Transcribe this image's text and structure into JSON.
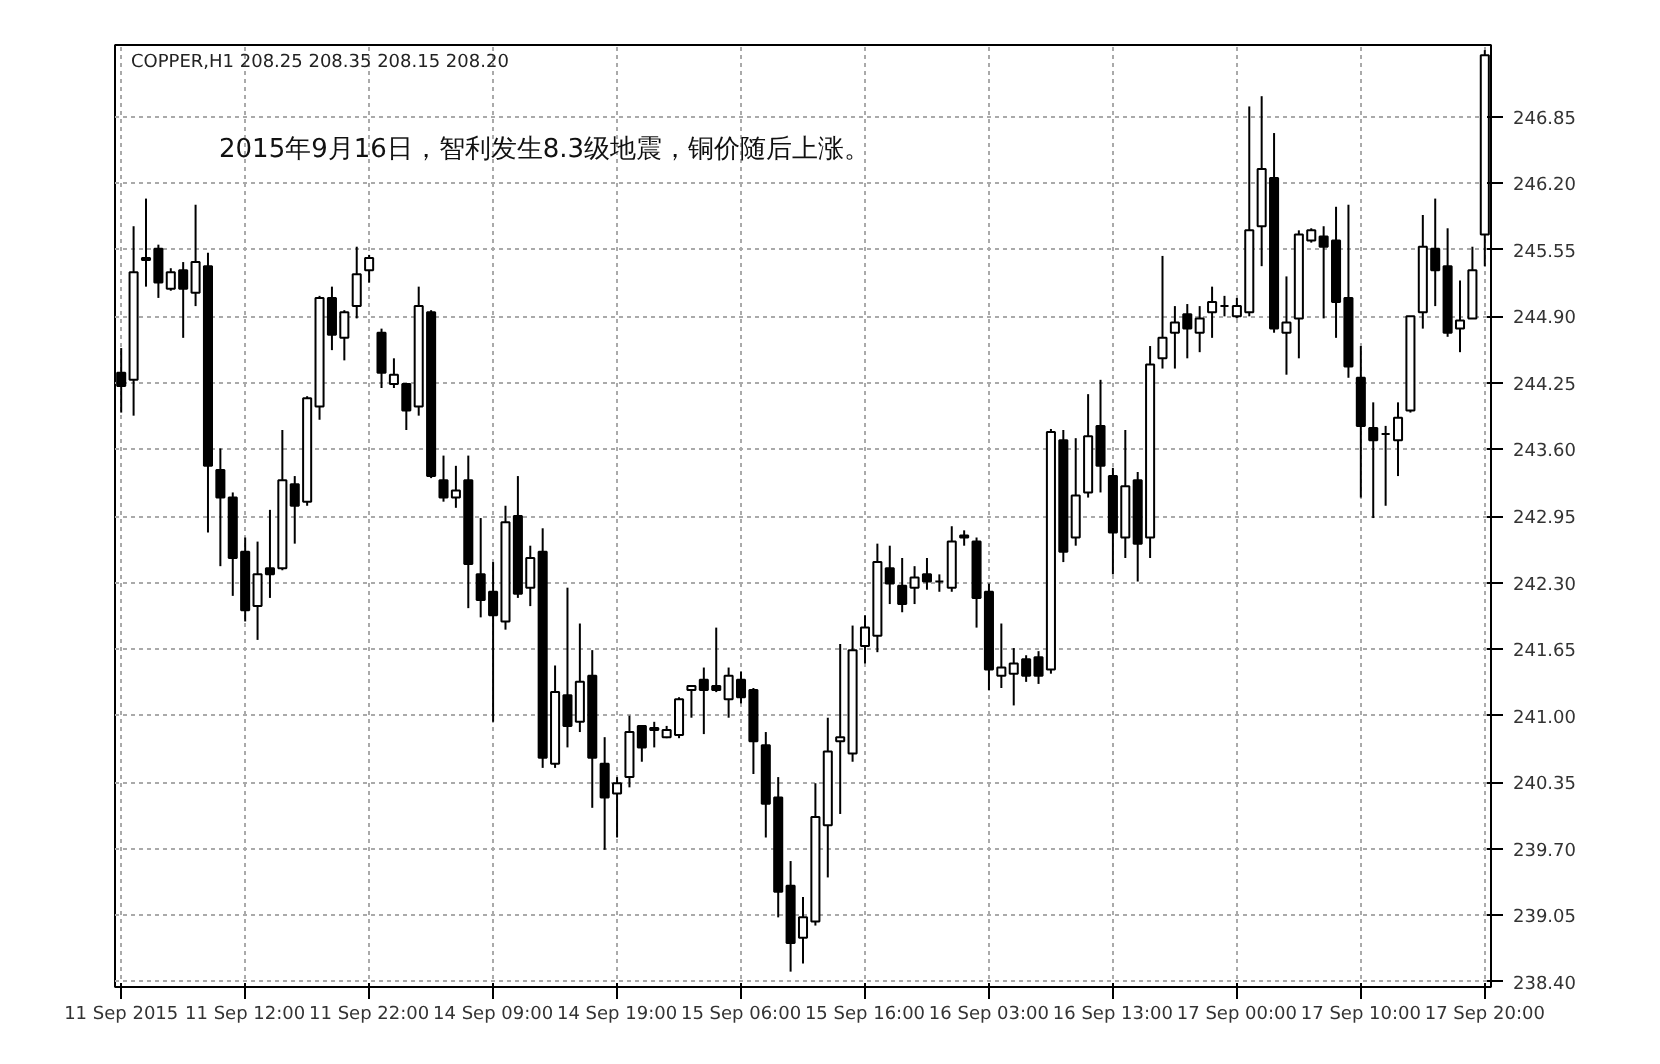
{
  "chart_data": {
    "type": "candlestick",
    "title": "COPPER,H1  208.25 208.35 208.15 208.20",
    "annotations": [
      "2015年9月16日，智利发生8.3级地震，铜价随后上涨。"
    ],
    "categories": [
      "11 Sep 2015",
      null,
      null,
      null,
      null,
      null,
      null,
      null,
      null,
      null,
      "11 Sep 12:00",
      null,
      null,
      null,
      null,
      null,
      null,
      null,
      null,
      null,
      "11 Sep 22:00",
      null,
      null,
      null,
      null,
      null,
      null,
      null,
      null,
      null,
      "14 Sep 09:00",
      null,
      null,
      null,
      null,
      null,
      null,
      null,
      null,
      null,
      "14 Sep 19:00",
      null,
      null,
      null,
      null,
      null,
      null,
      null,
      null,
      null,
      "15 Sep 06:00",
      null,
      null,
      null,
      null,
      null,
      null,
      null,
      null,
      null,
      "15 Sep 16:00",
      null,
      null,
      null,
      null,
      null,
      null,
      null,
      null,
      null,
      "16 Sep 03:00",
      null,
      null,
      null,
      null,
      null,
      null,
      null,
      null,
      null,
      "16 Sep 13:00",
      null,
      null,
      null,
      null,
      null,
      null,
      null,
      null,
      null,
      "17 Sep 00:00",
      null,
      null,
      null,
      null,
      null,
      null,
      null,
      null,
      null,
      "17 Sep 10:00",
      null,
      null,
      null,
      null,
      null,
      null,
      null,
      null,
      null,
      "17 Sep 20:00"
    ],
    "ohlc": [
      [
        244.35,
        244.59,
        243.96,
        244.22
      ],
      [
        244.28,
        245.78,
        243.93,
        245.33
      ],
      [
        245.47,
        246.05,
        245.19,
        245.45
      ],
      [
        245.56,
        245.6,
        245.08,
        245.23
      ],
      [
        245.17,
        245.37,
        245.15,
        245.33
      ],
      [
        245.35,
        245.43,
        244.69,
        245.17
      ],
      [
        245.13,
        245.99,
        245.0,
        245.43
      ],
      [
        245.39,
        245.52,
        242.79,
        243.44
      ],
      [
        243.4,
        243.61,
        242.46,
        243.13
      ],
      [
        243.13,
        243.18,
        242.17,
        242.54
      ],
      [
        242.6,
        242.74,
        241.92,
        242.03
      ],
      [
        242.07,
        242.7,
        241.74,
        242.38
      ],
      [
        242.44,
        243.01,
        242.15,
        242.38
      ],
      [
        242.44,
        243.79,
        242.42,
        243.3
      ],
      [
        243.26,
        243.34,
        242.68,
        243.05
      ],
      [
        243.09,
        244.12,
        243.05,
        244.1
      ],
      [
        244.02,
        245.1,
        243.89,
        245.08
      ],
      [
        245.08,
        245.19,
        244.57,
        244.72
      ],
      [
        244.69,
        244.96,
        244.47,
        244.94
      ],
      [
        245.0,
        245.58,
        244.88,
        245.31
      ],
      [
        245.35,
        245.5,
        245.23,
        245.47
      ],
      [
        244.74,
        244.78,
        244.2,
        244.35
      ],
      [
        244.24,
        244.49,
        244.2,
        244.33
      ],
      [
        244.24,
        244.24,
        243.79,
        243.98
      ],
      [
        244.02,
        245.19,
        243.93,
        245.0
      ],
      [
        244.94,
        244.96,
        243.32,
        243.34
      ],
      [
        243.3,
        243.54,
        243.09,
        243.13
      ],
      [
        243.13,
        243.44,
        243.03,
        243.2
      ],
      [
        243.3,
        243.54,
        242.05,
        242.48
      ],
      [
        242.38,
        242.93,
        241.96,
        242.13
      ],
      [
        242.21,
        242.5,
        240.94,
        241.98
      ],
      [
        241.92,
        243.05,
        241.84,
        242.89
      ],
      [
        242.95,
        243.34,
        242.15,
        242.19
      ],
      [
        242.25,
        242.66,
        242.07,
        242.54
      ],
      [
        242.6,
        242.83,
        240.49,
        240.59
      ],
      [
        240.53,
        241.49,
        240.49,
        241.23
      ],
      [
        241.2,
        242.25,
        240.69,
        240.9
      ],
      [
        240.94,
        241.9,
        240.84,
        241.33
      ],
      [
        241.39,
        241.64,
        240.1,
        240.59
      ],
      [
        240.53,
        240.79,
        239.69,
        240.2
      ],
      [
        240.24,
        240.4,
        239.81,
        240.34
      ],
      [
        240.4,
        241.0,
        240.3,
        240.84
      ],
      [
        240.9,
        240.9,
        240.55,
        240.69
      ],
      [
        240.86,
        240.94,
        240.69,
        240.88
      ],
      [
        240.79,
        240.9,
        240.78,
        240.86
      ],
      [
        240.81,
        241.18,
        240.78,
        241.16
      ],
      [
        241.25,
        241.29,
        240.98,
        241.29
      ],
      [
        241.35,
        241.47,
        240.82,
        241.25
      ],
      [
        241.29,
        241.86,
        241.23,
        241.25
      ],
      [
        241.16,
        241.47,
        240.98,
        241.39
      ],
      [
        241.35,
        241.43,
        241.12,
        241.18
      ],
      [
        241.25,
        241.27,
        240.43,
        240.75
      ],
      [
        240.71,
        240.84,
        239.81,
        240.14
      ],
      [
        240.2,
        240.4,
        239.03,
        239.28
      ],
      [
        239.34,
        239.58,
        238.5,
        238.78
      ],
      [
        238.83,
        239.23,
        238.58,
        239.03
      ],
      [
        238.99,
        240.34,
        238.95,
        240.01
      ],
      [
        239.93,
        240.98,
        239.42,
        240.65
      ],
      [
        240.75,
        241.7,
        240.04,
        240.79
      ],
      [
        240.63,
        241.88,
        240.55,
        241.64
      ],
      [
        241.68,
        241.98,
        241.51,
        241.86
      ],
      [
        241.78,
        242.68,
        241.62,
        242.5
      ],
      [
        242.44,
        242.66,
        242.09,
        242.29
      ],
      [
        242.27,
        242.54,
        242.01,
        242.09
      ],
      [
        242.25,
        242.46,
        242.09,
        242.35
      ],
      [
        242.38,
        242.54,
        242.23,
        242.31
      ],
      [
        242.31,
        242.38,
        242.21,
        242.31
      ],
      [
        242.25,
        242.85,
        242.21,
        242.7
      ],
      [
        242.74,
        242.81,
        242.66,
        242.76
      ],
      [
        242.7,
        242.74,
        241.86,
        242.15
      ],
      [
        242.21,
        242.29,
        241.25,
        241.45
      ],
      [
        241.39,
        241.9,
        241.27,
        241.47
      ],
      [
        241.41,
        241.66,
        241.1,
        241.51
      ],
      [
        241.55,
        241.59,
        241.33,
        241.39
      ],
      [
        241.57,
        241.63,
        241.31,
        241.39
      ],
      [
        241.45,
        243.8,
        241.41,
        243.77
      ],
      [
        243.69,
        243.79,
        242.5,
        242.6
      ],
      [
        242.74,
        243.71,
        242.66,
        243.15
      ],
      [
        243.18,
        244.14,
        243.13,
        243.73
      ],
      [
        243.83,
        244.28,
        243.18,
        243.44
      ],
      [
        243.34,
        243.42,
        242.38,
        242.79
      ],
      [
        242.74,
        243.79,
        242.54,
        243.24
      ],
      [
        243.3,
        243.38,
        242.31,
        242.68
      ],
      [
        242.74,
        244.61,
        242.54,
        244.43
      ],
      [
        244.49,
        245.49,
        244.39,
        244.69
      ],
      [
        244.74,
        245.0,
        244.39,
        244.84
      ],
      [
        244.92,
        245.02,
        244.49,
        244.78
      ],
      [
        244.74,
        245.0,
        244.55,
        244.88
      ],
      [
        244.94,
        245.19,
        244.69,
        245.04
      ],
      [
        245.0,
        245.1,
        244.9,
        245.0
      ],
      [
        244.9,
        245.08,
        244.88,
        245.0
      ],
      [
        244.94,
        246.95,
        244.9,
        245.74
      ],
      [
        245.78,
        247.05,
        245.39,
        246.34
      ],
      [
        246.25,
        246.69,
        244.74,
        244.78
      ],
      [
        244.74,
        245.29,
        244.33,
        244.84
      ],
      [
        244.88,
        245.74,
        244.49,
        245.7
      ],
      [
        245.64,
        245.76,
        245.62,
        245.74
      ],
      [
        245.68,
        245.78,
        244.88,
        245.58
      ],
      [
        245.64,
        245.97,
        244.69,
        245.04
      ],
      [
        245.08,
        245.99,
        244.3,
        244.41
      ],
      [
        244.3,
        244.61,
        243.13,
        243.83
      ],
      [
        243.81,
        244.06,
        242.93,
        243.69
      ],
      [
        243.75,
        243.83,
        243.05,
        243.75
      ],
      [
        243.69,
        244.06,
        243.34,
        243.91
      ],
      [
        243.98,
        244.9,
        243.96,
        244.9
      ],
      [
        244.94,
        245.89,
        244.78,
        245.58
      ],
      [
        245.56,
        246.05,
        245.0,
        245.35
      ],
      [
        245.39,
        245.76,
        244.7,
        244.74
      ],
      [
        244.78,
        245.25,
        244.55,
        244.86
      ],
      [
        244.88,
        245.58,
        244.88,
        245.35
      ],
      [
        245.7,
        247.5,
        245.39,
        247.45
      ]
    ],
    "color": "#000000",
    "ylim": [
      238.35,
      247.55
    ],
    "yticks": [
      {
        "value": 238.4,
        "label": "238.40"
      },
      {
        "value": 239.05,
        "label": "239.05"
      },
      {
        "value": 239.7,
        "label": "239.70"
      },
      {
        "value": 240.35,
        "label": "240.35"
      },
      {
        "value": 241.0,
        "label": "241.00"
      },
      {
        "value": 241.65,
        "label": "241.65"
      },
      {
        "value": 242.3,
        "label": "242.30"
      },
      {
        "value": 242.95,
        "label": "242.95"
      },
      {
        "value": 243.6,
        "label": "243.60"
      },
      {
        "value": 244.25,
        "label": "244.25"
      },
      {
        "value": 244.9,
        "label": "244.90"
      },
      {
        "value": 245.55,
        "label": "245.55"
      },
      {
        "value": 246.2,
        "label": "246.20"
      },
      {
        "value": 246.85,
        "label": "246.85"
      }
    ],
    "grid": true
  }
}
